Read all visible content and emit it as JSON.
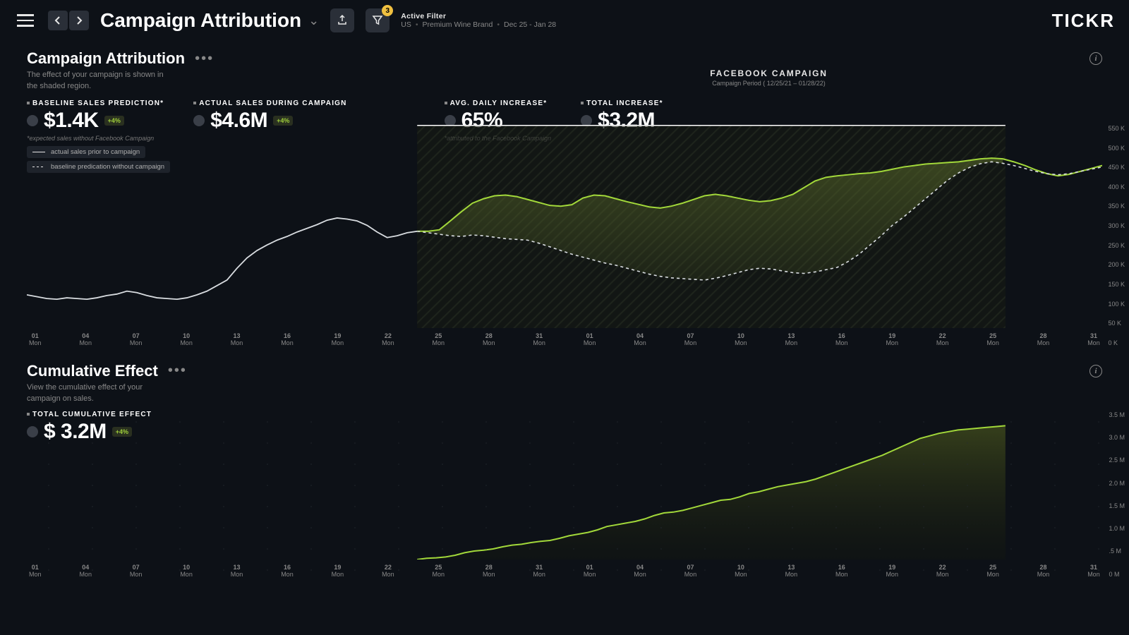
{
  "header": {
    "page_title": "Campaign Attribution",
    "filter_label": "Active Filter",
    "filter_badge": "3",
    "filter_values": [
      "US",
      "Premium Wine Brand",
      "Dec 25 - Jan 28"
    ],
    "logo": "TICKR"
  },
  "section1": {
    "title": "Campaign Attribution",
    "subtitle": "The effect of your campaign is shown in the shaded region.",
    "campaign_title": "FACEBOOK CAMPAIGN",
    "campaign_period": "Campaign  Period ( 12/25/21 – 01/28/22)",
    "kpis": [
      {
        "label": "BASELINE SALES PREDICTION*",
        "value": "$1.4K",
        "delta": "+4%",
        "foot": "*expected sales without Facebook Campaign"
      },
      {
        "label": "ACTUAL SALES DURING CAMPAIGN",
        "value": "$4.6M",
        "delta": "+4%",
        "foot": ""
      },
      {
        "label": "AVG. DAILY INCREASE*",
        "value": "65%",
        "delta": "",
        "foot": "*attributed to the Facebook Campaign"
      },
      {
        "label": "TOTAL INCREASE*",
        "value": "$3.2M",
        "delta": "",
        "foot": ""
      }
    ],
    "legend": [
      "actual sales prior to campaign",
      "baseline predication without campaign"
    ]
  },
  "section2": {
    "title": "Cumulative Effect",
    "subtitle": "View the cumulative effect of your campaign on sales.",
    "kpi": {
      "label": "TOTAL CUMULATIVE EFFECT",
      "value": "$ 3.2M",
      "delta": "+4%"
    }
  },
  "xaxis_dates": [
    "01",
    "04",
    "07",
    "10",
    "13",
    "16",
    "19",
    "22",
    "25",
    "28",
    "31",
    "01",
    "04",
    "07",
    "10",
    "13",
    "16",
    "19",
    "22",
    "25",
    "28",
    "31"
  ],
  "xaxis_day": "Mon",
  "chart1": {
    "ylabels": [
      "550 K",
      "500 K",
      "450 K",
      "400 K",
      "350 K",
      "300 K",
      "250 K",
      "200 K",
      "150 K",
      "100 K",
      "50 K",
      "0 K"
    ],
    "ylim": [
      0,
      550
    ],
    "campaign_start_x": 0.363,
    "campaign_end_x": 0.91,
    "colors": {
      "actual_pre": "#d8dce0",
      "actual_post": "#a2d83a",
      "baseline": "#d8dce0",
      "fill": "#5a6b2a",
      "hatch": "#2a2f28",
      "bg": "#0d1117"
    },
    "actual_pre": [
      90,
      85,
      80,
      78,
      82,
      80,
      78,
      82,
      88,
      92,
      100,
      96,
      88,
      82,
      80,
      78,
      82,
      90,
      100,
      115,
      130,
      162,
      190,
      210,
      225,
      238,
      248,
      260,
      270,
      280,
      292,
      298,
      295,
      290,
      278,
      260,
      245,
      250,
      258,
      262
    ],
    "actual_post": [
      262,
      262,
      266,
      290,
      315,
      338,
      350,
      358,
      360,
      356,
      348,
      340,
      332,
      330,
      334,
      352,
      360,
      358,
      350,
      342,
      335,
      328,
      325,
      330,
      338,
      348,
      358,
      362,
      358,
      352,
      346,
      342,
      345,
      352,
      362,
      380,
      398,
      408,
      412,
      415,
      418,
      420,
      424,
      430,
      436,
      440,
      444,
      446,
      448,
      450,
      454,
      458,
      460,
      458,
      450,
      440,
      428,
      418,
      412,
      416,
      424,
      432,
      440
    ],
    "baseline": [
      262,
      258,
      254,
      250,
      248,
      252,
      250,
      246,
      242,
      240,
      238,
      230,
      220,
      210,
      200,
      192,
      184,
      176,
      170,
      162,
      154,
      146,
      140,
      136,
      134,
      132,
      130,
      135,
      142,
      150,
      158,
      162,
      160,
      155,
      150,
      148,
      152,
      158,
      164,
      180,
      200,
      225,
      250,
      278,
      300,
      325,
      350,
      375,
      400,
      420,
      435,
      445,
      450,
      446,
      440,
      432,
      424,
      418,
      415,
      418,
      424,
      430,
      436
    ]
  },
  "chart2": {
    "ylabels": [
      "3.5 M",
      "3.0 M",
      "2.5 M",
      "2.0 M",
      "1.5 M",
      "1.0 M",
      ".5 M",
      "0 M"
    ],
    "ylim": [
      0,
      3.5
    ],
    "colors": {
      "line": "#a2d83a",
      "fill_top": "#3a441c",
      "fill_bottom": "#14180e"
    },
    "values": [
      0,
      0.03,
      0.04,
      0.06,
      0.1,
      0.16,
      0.2,
      0.22,
      0.25,
      0.3,
      0.34,
      0.36,
      0.4,
      0.43,
      0.45,
      0.5,
      0.56,
      0.6,
      0.64,
      0.7,
      0.78,
      0.82,
      0.86,
      0.9,
      0.96,
      1.04,
      1.1,
      1.12,
      1.16,
      1.22,
      1.28,
      1.34,
      1.4,
      1.42,
      1.48,
      1.56,
      1.6,
      1.66,
      1.72,
      1.76,
      1.8,
      1.84,
      1.9,
      1.98,
      2.06,
      2.14,
      2.22,
      2.3,
      2.38,
      2.46,
      2.56,
      2.66,
      2.76,
      2.86,
      2.92,
      2.98,
      3.02,
      3.06,
      3.08,
      3.1,
      3.12,
      3.14,
      3.16
    ]
  }
}
